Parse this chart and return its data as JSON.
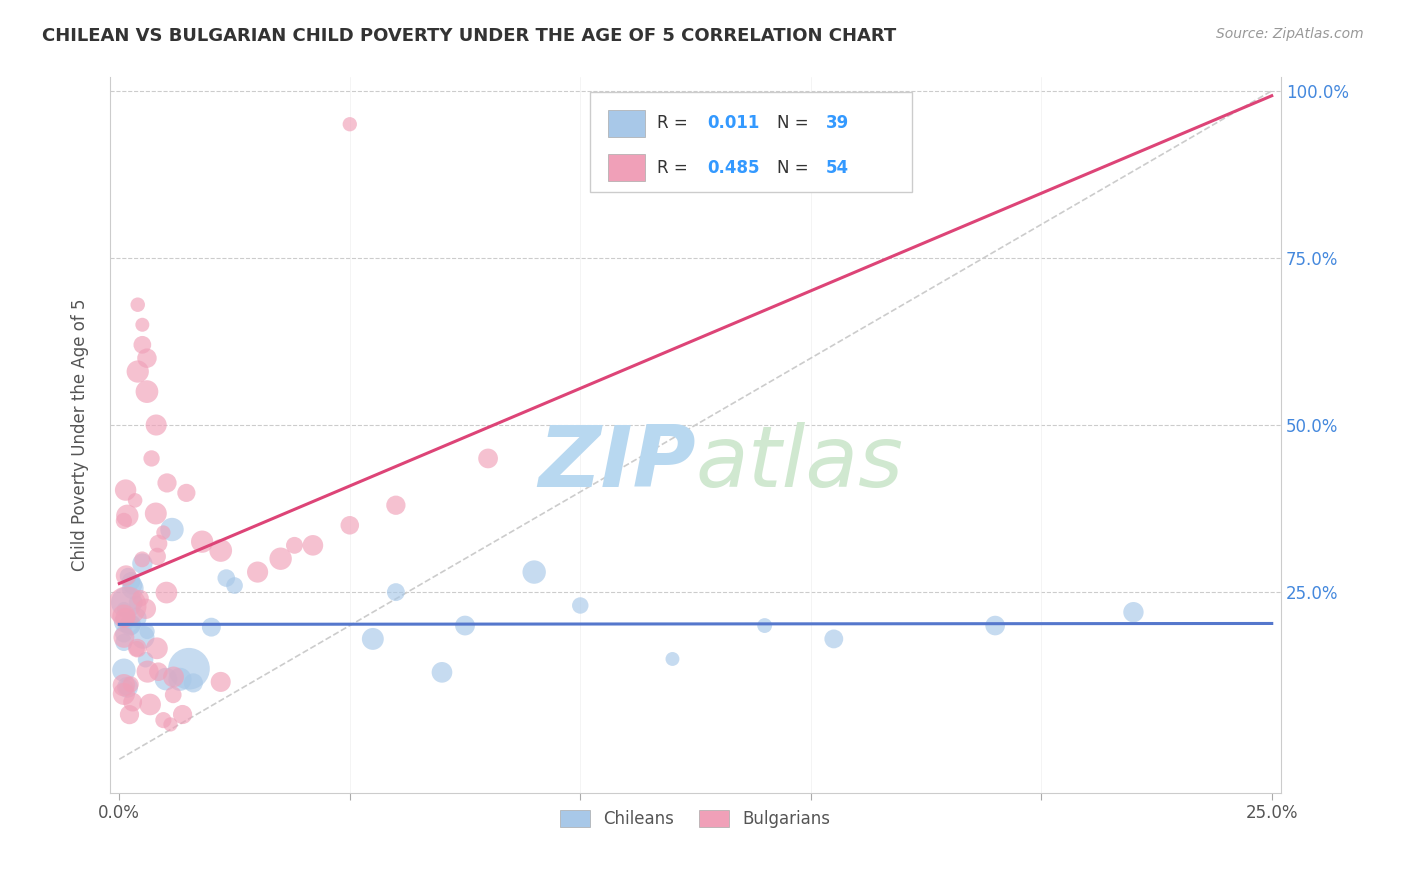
{
  "title": "CHILEAN VS BULGARIAN CHILD POVERTY UNDER THE AGE OF 5 CORRELATION CHART",
  "source_text": "Source: ZipAtlas.com",
  "ylabel": "Child Poverty Under the Age of 5",
  "xlim": [
    -0.002,
    0.252
  ],
  "ylim": [
    -0.05,
    1.02
  ],
  "xtick_vals": [
    0.0,
    0.05,
    0.1,
    0.15,
    0.2,
    0.25
  ],
  "xtick_labels": [
    "0.0%",
    "",
    "",
    "",
    "",
    "25.0%"
  ],
  "ytick_vals": [
    0.0,
    0.25,
    0.5,
    0.75,
    1.0
  ],
  "ytick_labels": [
    "",
    "25.0%",
    "50.0%",
    "75.0%",
    "100.0%"
  ],
  "chileans_color": "#a8c8e8",
  "bulgarians_color": "#f0a0b8",
  "chileans_R": "0.011",
  "chileans_N": "39",
  "bulgarians_R": "0.485",
  "bulgarians_N": "54",
  "legend_value_color": "#3399ff",
  "title_color": "#333333",
  "axis_label_color": "#555555",
  "grid_color": "#cccccc",
  "diagonal_color": "#cccccc",
  "chileans_line_color": "#5577cc",
  "bulgarians_line_color": "#dd4477",
  "watermark_color": "#cce8f4",
  "background_color": "#ffffff",
  "ytick_color": "#4488dd"
}
